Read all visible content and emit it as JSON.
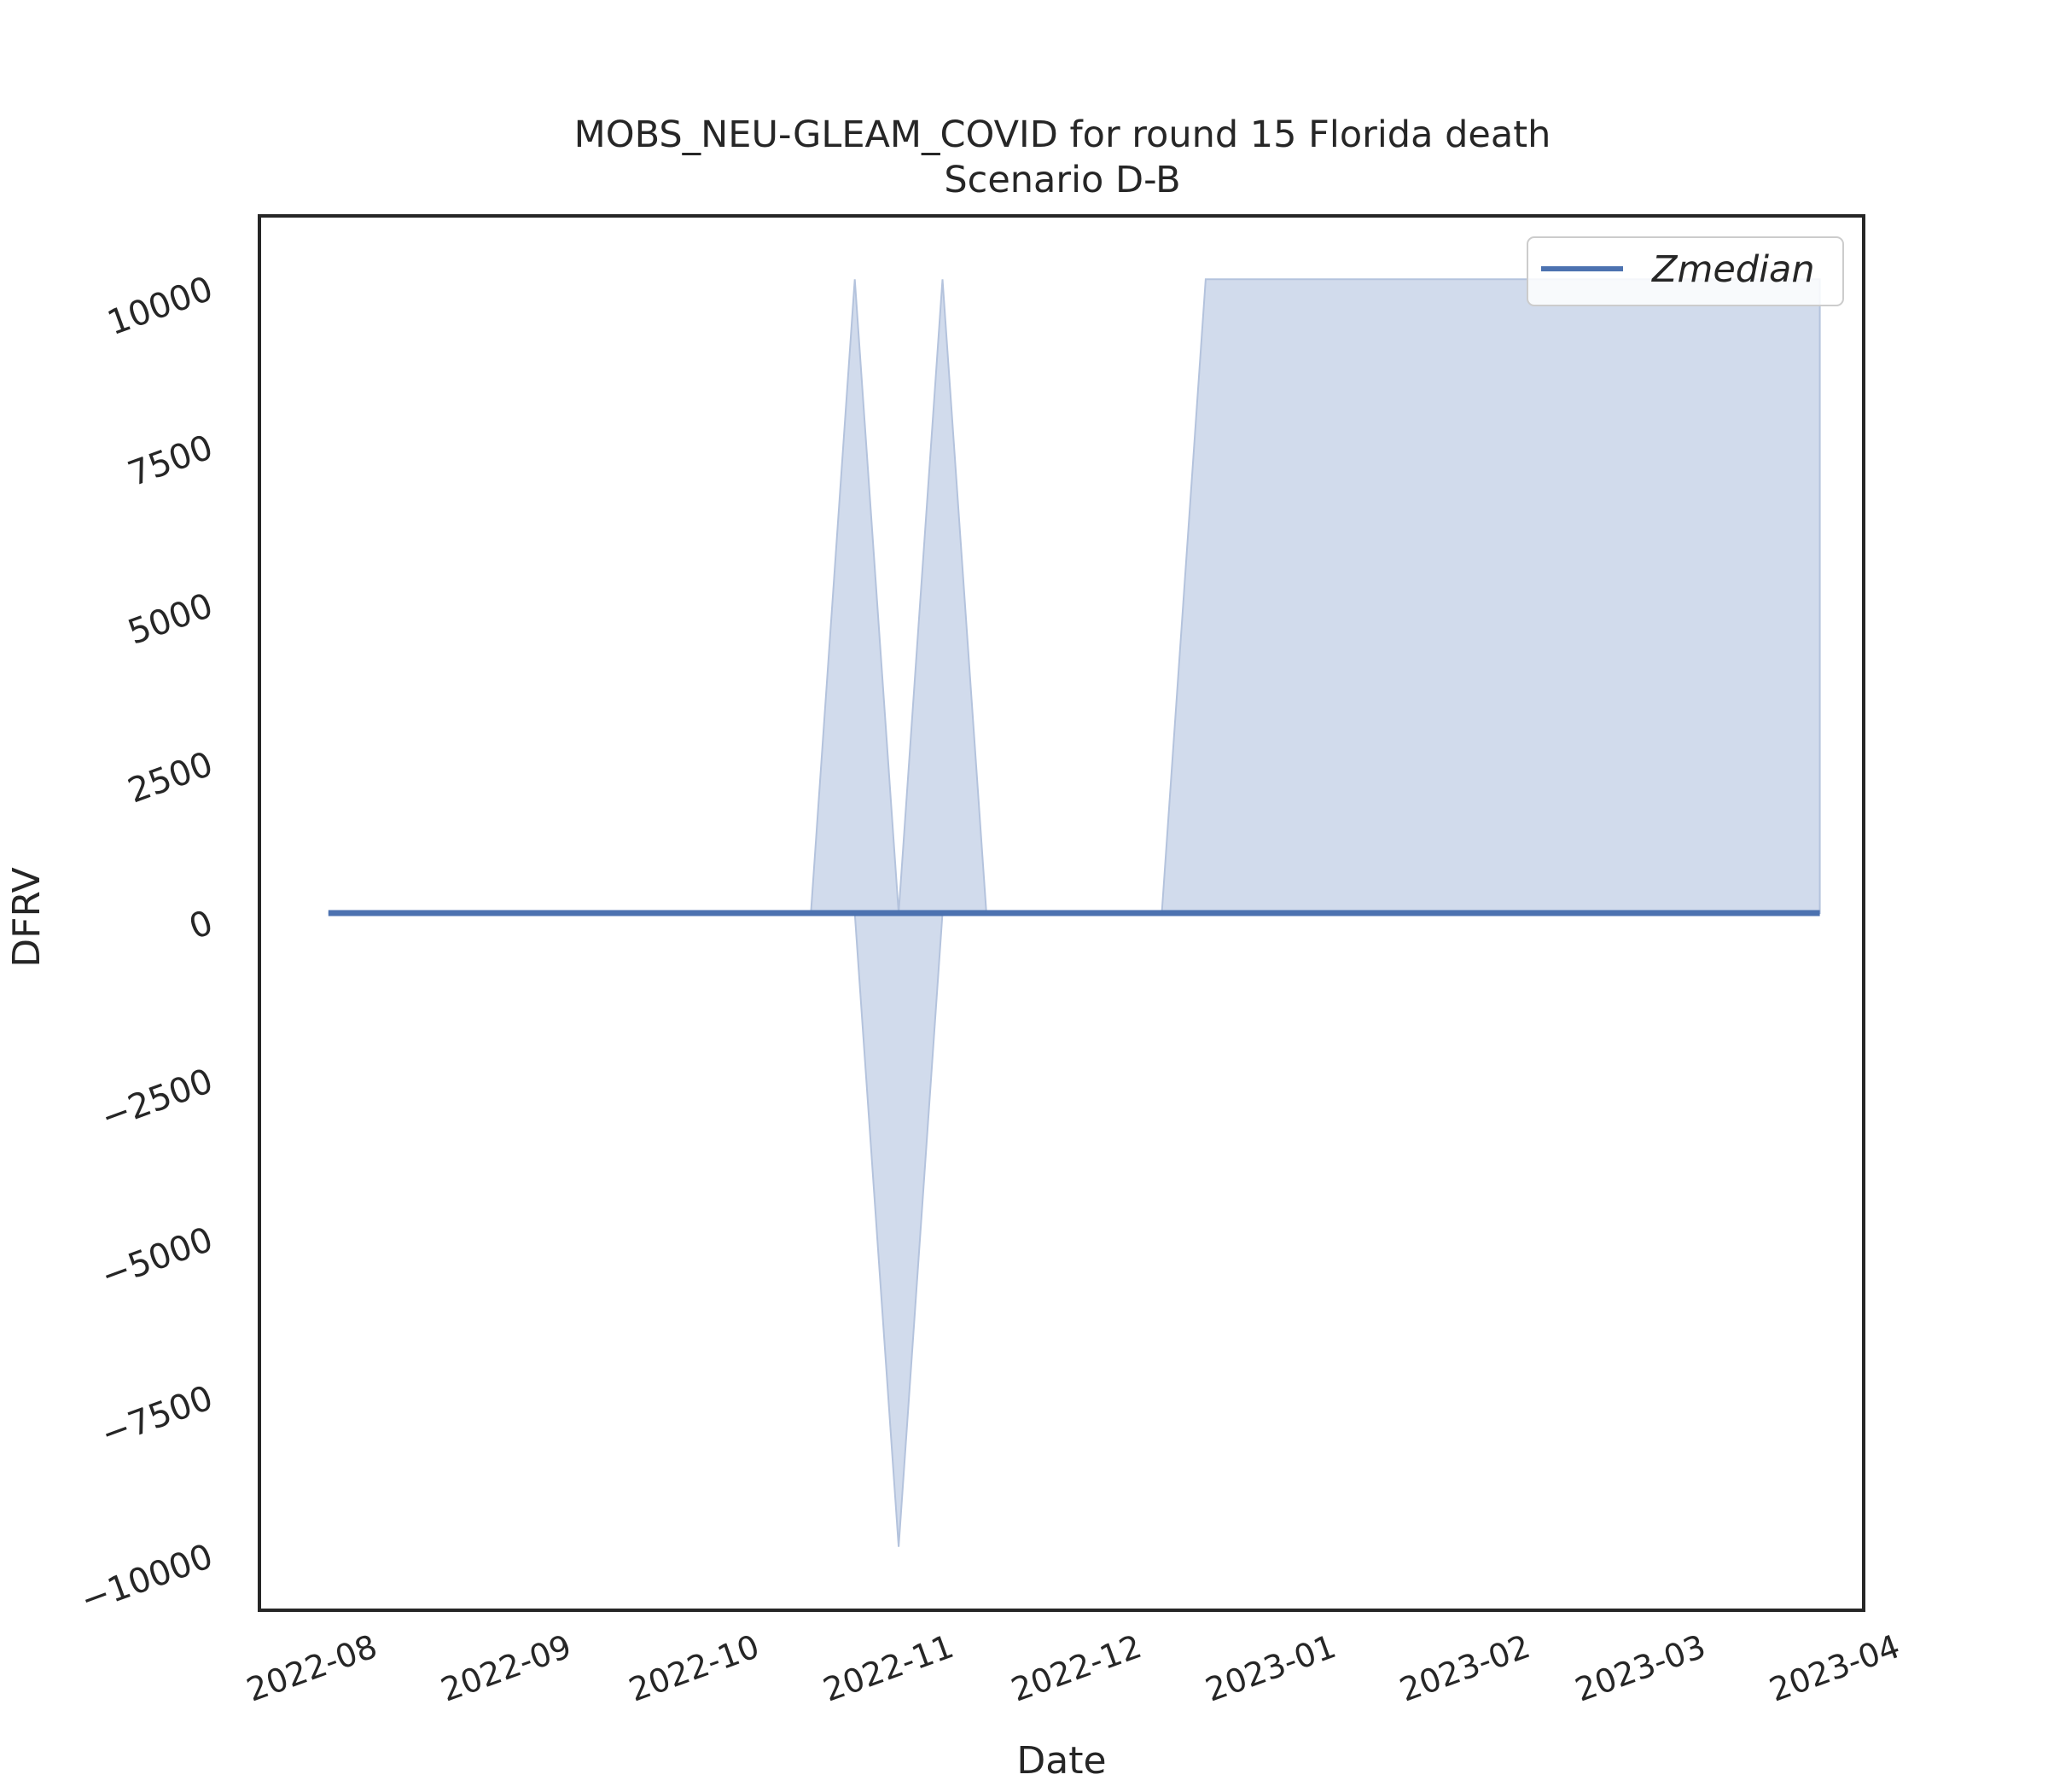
{
  "chart_data": {
    "type": "area",
    "title": "MOBS_NEU-GLEAM_COVID for round 15 Florida death",
    "subtitle": "Scenario D-B",
    "xlabel": "Date",
    "ylabel": "DFRV",
    "xlim": [
      "2022-07-19",
      "2023-04-01"
    ],
    "ylim": [
      -11000,
      11000
    ],
    "yticks": [
      -10000,
      -7500,
      -5000,
      -2500,
      0,
      2500,
      5000,
      7500,
      10000
    ],
    "xticks": [
      "2022-08",
      "2022-09",
      "2022-10",
      "2022-11",
      "2022-12",
      "2023-01",
      "2023-02",
      "2023-03",
      "2023-04"
    ],
    "legend": {
      "position": "top-right",
      "entries": [
        "Zmedian"
      ]
    },
    "grid": false,
    "colors": {
      "line": "#4c72b0",
      "band": "#d1dbec",
      "band_edge": "#b4c3dd"
    },
    "series": [
      {
        "name": "Zmedian",
        "x": [
          "2022-07-30",
          "2022-08-06",
          "2022-08-13",
          "2022-08-20",
          "2022-08-27",
          "2022-09-03",
          "2022-09-10",
          "2022-09-17",
          "2022-09-24",
          "2022-10-01",
          "2022-10-08",
          "2022-10-15",
          "2022-10-22",
          "2022-10-29",
          "2022-11-05",
          "2022-11-12",
          "2022-11-19",
          "2022-11-26",
          "2022-12-03",
          "2022-12-10",
          "2022-12-17",
          "2022-12-24",
          "2022-12-31",
          "2023-01-07",
          "2023-01-14",
          "2023-01-21",
          "2023-01-28",
          "2023-02-04",
          "2023-02-11",
          "2023-02-18",
          "2023-02-25",
          "2023-03-04",
          "2023-03-11",
          "2023-03-18",
          "2023-03-25"
        ],
        "values": [
          0,
          0,
          0,
          0,
          0,
          0,
          0,
          0,
          0,
          0,
          0,
          0,
          0,
          0,
          0,
          0,
          0,
          0,
          0,
          0,
          0,
          0,
          0,
          0,
          0,
          0,
          0,
          0,
          0,
          0,
          0,
          0,
          0,
          0,
          0
        ],
        "upper": [
          0,
          0,
          0,
          0,
          0,
          0,
          0,
          0,
          0,
          0,
          0,
          0,
          10000,
          0,
          10000,
          0,
          0,
          0,
          0,
          0,
          10000,
          10000,
          10000,
          10000,
          10000,
          10000,
          10000,
          10000,
          10000,
          10000,
          10000,
          10000,
          10000,
          10000,
          10000
        ],
        "lower": [
          0,
          0,
          0,
          0,
          0,
          0,
          0,
          0,
          0,
          0,
          0,
          0,
          0,
          -10000,
          0,
          0,
          0,
          0,
          0,
          0,
          0,
          0,
          0,
          0,
          0,
          0,
          0,
          0,
          0,
          0,
          0,
          0,
          0,
          0,
          0
        ]
      }
    ]
  }
}
